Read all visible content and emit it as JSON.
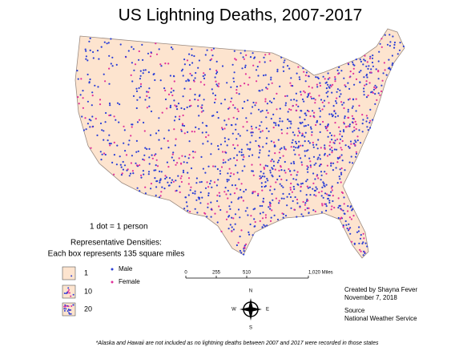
{
  "title": "US Lightning Deaths, 2007-2017",
  "dot_rule": "1 dot = 1 person",
  "densities": {
    "heading": "Representative Densities:",
    "subheading": "Each box represents 135 square miles",
    "boxes": [
      1,
      10,
      20
    ]
  },
  "legend": {
    "male": "Male",
    "female": "Female"
  },
  "scale_bar": {
    "labels": [
      "0",
      "255",
      "510",
      "1,020 Miles"
    ]
  },
  "compass": {
    "north": "N",
    "east": "E",
    "south": "S",
    "west": "W"
  },
  "credits": {
    "author": "Created by Shayna Fever",
    "date": "November 7, 2018",
    "source_heading": "Source",
    "source": "National Weather Service"
  },
  "footnote": "*Alaska and Hawaii are not included as no lightning deaths between 2007 and 2017 were recorded in those states"
}
